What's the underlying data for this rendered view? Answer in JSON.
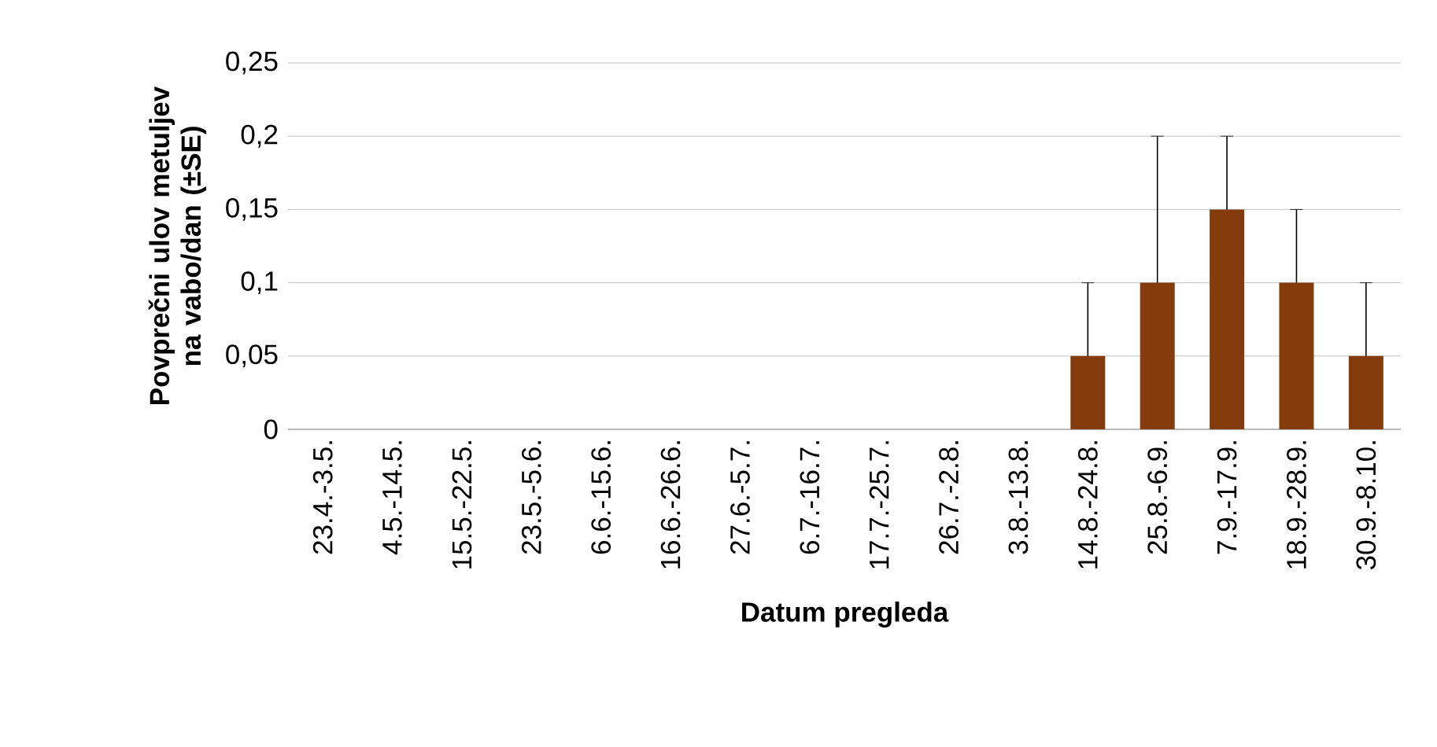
{
  "chart_data": {
    "type": "bar",
    "xlabel": "Datum pregleda",
    "ylabel": "Povprečni ulov metuljev na vabo/dan (±SE)",
    "categories": [
      "23.4.-3.5.",
      "4.5.-14.5.",
      "15.5.-22.5.",
      "23.5.-5.6.",
      "6.6.-15.6.",
      "16.6.-26.6.",
      "27.6.-5.7.",
      "6.7.-16.7.",
      "17.7.-25.7.",
      "26.7.-2.8.",
      "3.8.-13.8.",
      "14.8.-24.8.",
      "25.8.-6.9.",
      "7.9.-17.9.",
      "18.9.-28.9.",
      "30.9.-8.10."
    ],
    "values": [
      0,
      0,
      0,
      0,
      0,
      0,
      0,
      0,
      0,
      0,
      0,
      0.05,
      0.1,
      0.15,
      0.1,
      0.05
    ],
    "errors": [
      null,
      null,
      null,
      null,
      null,
      null,
      null,
      null,
      null,
      null,
      null,
      [
        0.05,
        0.1
      ],
      [
        0.1,
        0.2
      ],
      [
        0.15,
        0.2
      ],
      [
        0.1,
        0.15
      ],
      [
        0.05,
        0.1
      ]
    ],
    "color": "#843c0c",
    "ylim": [
      0,
      0.25
    ],
    "yticks": [
      {
        "value": 0,
        "label": "0"
      },
      {
        "value": 0.05,
        "label": "0,05"
      },
      {
        "value": 0.1,
        "label": "0,1"
      },
      {
        "value": 0.15,
        "label": "0,15"
      },
      {
        "value": 0.2,
        "label": "0,2"
      },
      {
        "value": 0.25,
        "label": "0,25"
      }
    ],
    "grid": "y"
  }
}
